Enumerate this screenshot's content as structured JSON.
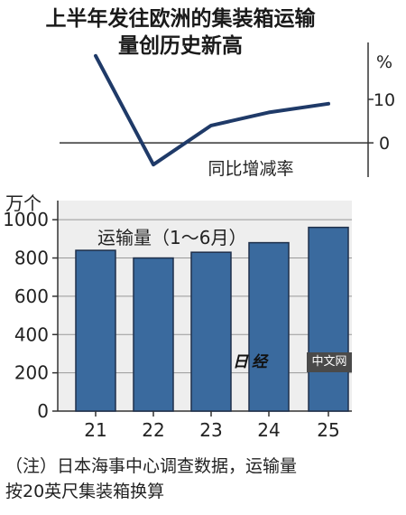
{
  "title": {
    "line1": "上半年发往欧洲的集装箱运输",
    "line2": "量创历史新高"
  },
  "chart_data": [
    {
      "type": "line",
      "series": [
        {
          "name": "同比增减率",
          "x": [
            "21",
            "22",
            "23",
            "24",
            "25"
          ],
          "values": [
            20,
            -5,
            4,
            7,
            9
          ]
        }
      ],
      "ylabel": "%",
      "yticks": [
        "10",
        "0"
      ],
      "ylim": [
        -6,
        21
      ],
      "grid": false
    },
    {
      "type": "bar",
      "annotation": "运输量（1～6月）",
      "categories": [
        "21",
        "22",
        "23",
        "24",
        "25"
      ],
      "values": [
        840,
        800,
        830,
        880,
        960
      ],
      "ylabel": "万个",
      "yticks": [
        "0",
        "200",
        "400",
        "600",
        "800",
        "1000"
      ],
      "ylim": [
        0,
        1100
      ],
      "grid": true,
      "colors": {
        "bar": "#3a6a9e",
        "bar_edge": "#1e2f4a",
        "line": "#1f3a68",
        "panel": "#eeeeee",
        "grid": "#999999"
      }
    }
  ],
  "watermark": {
    "left": "日经",
    "right": "中文网"
  },
  "note": {
    "line1": "（注）日本海事中心调查数据，运输量",
    "line2": "按20英尺集装箱换算"
  }
}
